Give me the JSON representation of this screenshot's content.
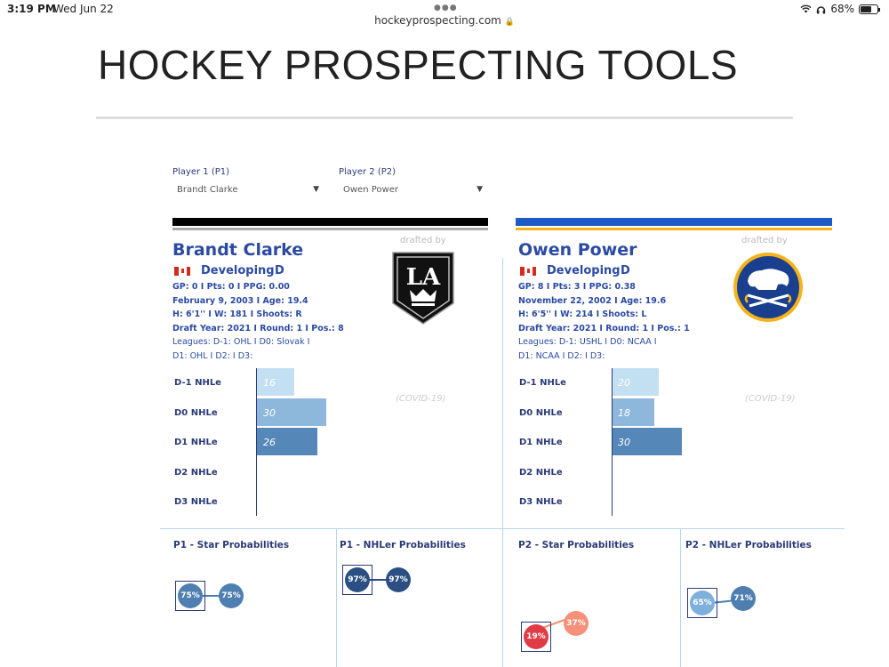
{
  "status_bar": {
    "time": "3:19 PM",
    "date": "Wed Jun 22",
    "battery": "68%",
    "battery_level": 0.68
  },
  "browser": {
    "url": "hockeyprospecting.com"
  },
  "page": {
    "title": "HOCKEY PROSPECTING TOOLS"
  },
  "selectors": {
    "p1": {
      "label": "Player 1 (P1)",
      "value": "Brandt Clarke"
    },
    "p2": {
      "label": "Player 2 (P2)",
      "value": "Owen Power"
    }
  },
  "players": [
    {
      "name": "Brandt Clarke",
      "drafted_by": "drafted by",
      "team_logo": "la-kings-logo",
      "status": "Developing",
      "position": "D",
      "stats": "GP: 0 I Pts: 0 I PPG: 0.00",
      "birth": "February 9, 2003 I Age: 19.4",
      "physical": "H: 6'1'' I W: 181 I Shoots: R",
      "draft": "Draft Year: 2021 I Round: 1 I Pos.: 8",
      "leagues_1": "Leagues: D-1: OHL I D0: Slovak I",
      "leagues_2": "D1: OHL I D2:  I D3:",
      "covid_note": "(COVID-19)",
      "colors": {
        "primary": "#000000",
        "secondary": "#aaaaaa"
      },
      "nhle": [
        {
          "label": "D-1 NHLe",
          "value": 16,
          "display": "16",
          "color": "#c3dff2"
        },
        {
          "label": "D0 NHLe",
          "value": 30,
          "display": "30",
          "color": "#8db8dc"
        },
        {
          "label": "D1 NHLe",
          "value": 26,
          "display": "26",
          "color": "#5687b9"
        },
        {
          "label": "D2 NHLe",
          "value": null,
          "display": "",
          "color": "#5687b9"
        },
        {
          "label": "D3 NHLe",
          "value": null,
          "display": "",
          "color": "#5687b9"
        }
      ]
    },
    {
      "name": "Owen Power",
      "drafted_by": "drafted by",
      "team_logo": "buffalo-sabres-logo",
      "status": "Developing",
      "position": "D",
      "stats": "GP: 8 I Pts: 3 I PPG: 0.38",
      "birth": "November 22, 2002 I Age: 19.6",
      "physical": "H: 6'5'' I W: 214 I Shoots: L",
      "draft": "Draft Year: 2021 I Round: 1 I Pos.: 1",
      "leagues_1": "Leagues: D-1: USHL I D0: NCAA I",
      "leagues_2": "D1: NCAA I D2:  I D3:",
      "covid_note": "(COVID-19)",
      "colors": {
        "primary": "#1f5bc6",
        "secondary": "#f6b21b"
      },
      "nhle": [
        {
          "label": "D-1 NHLe",
          "value": 20,
          "display": "20",
          "color": "#c3dff2"
        },
        {
          "label": "D0 NHLe",
          "value": 18,
          "display": "18",
          "color": "#8db8dc"
        },
        {
          "label": "D1 NHLe",
          "value": 30,
          "display": "30",
          "color": "#5687b9"
        },
        {
          "label": "D2 NHLe",
          "value": null,
          "display": "",
          "color": "#5687b9"
        },
        {
          "label": "D3 NHLe",
          "value": null,
          "display": "",
          "color": "#5687b9"
        }
      ]
    }
  ],
  "probabilities": [
    {
      "title": "P1 - Star Probabilities",
      "from": 75,
      "from_label": "75%",
      "to": 75,
      "to_label": "75%",
      "from_color": "#4f7fb0",
      "to_color": "#4f7fb0"
    },
    {
      "title": "P1 - NHLer Probabilities",
      "from": 97,
      "from_label": "97%",
      "to": 97,
      "to_label": "97%",
      "from_color": "#2b4f82",
      "to_color": "#2b4f82"
    },
    {
      "title": "P2 - Star Probabilities",
      "from": 19,
      "from_label": "19%",
      "to": 37,
      "to_label": "37%",
      "from_color": "#e03c46",
      "to_color": "#f5907a"
    },
    {
      "title": "P2 - NHLer Probabilities",
      "from": 65,
      "from_label": "65%",
      "to": 71,
      "to_label": "71%",
      "from_color": "#7fb0db",
      "to_color": "#4f7fb0"
    }
  ]
}
